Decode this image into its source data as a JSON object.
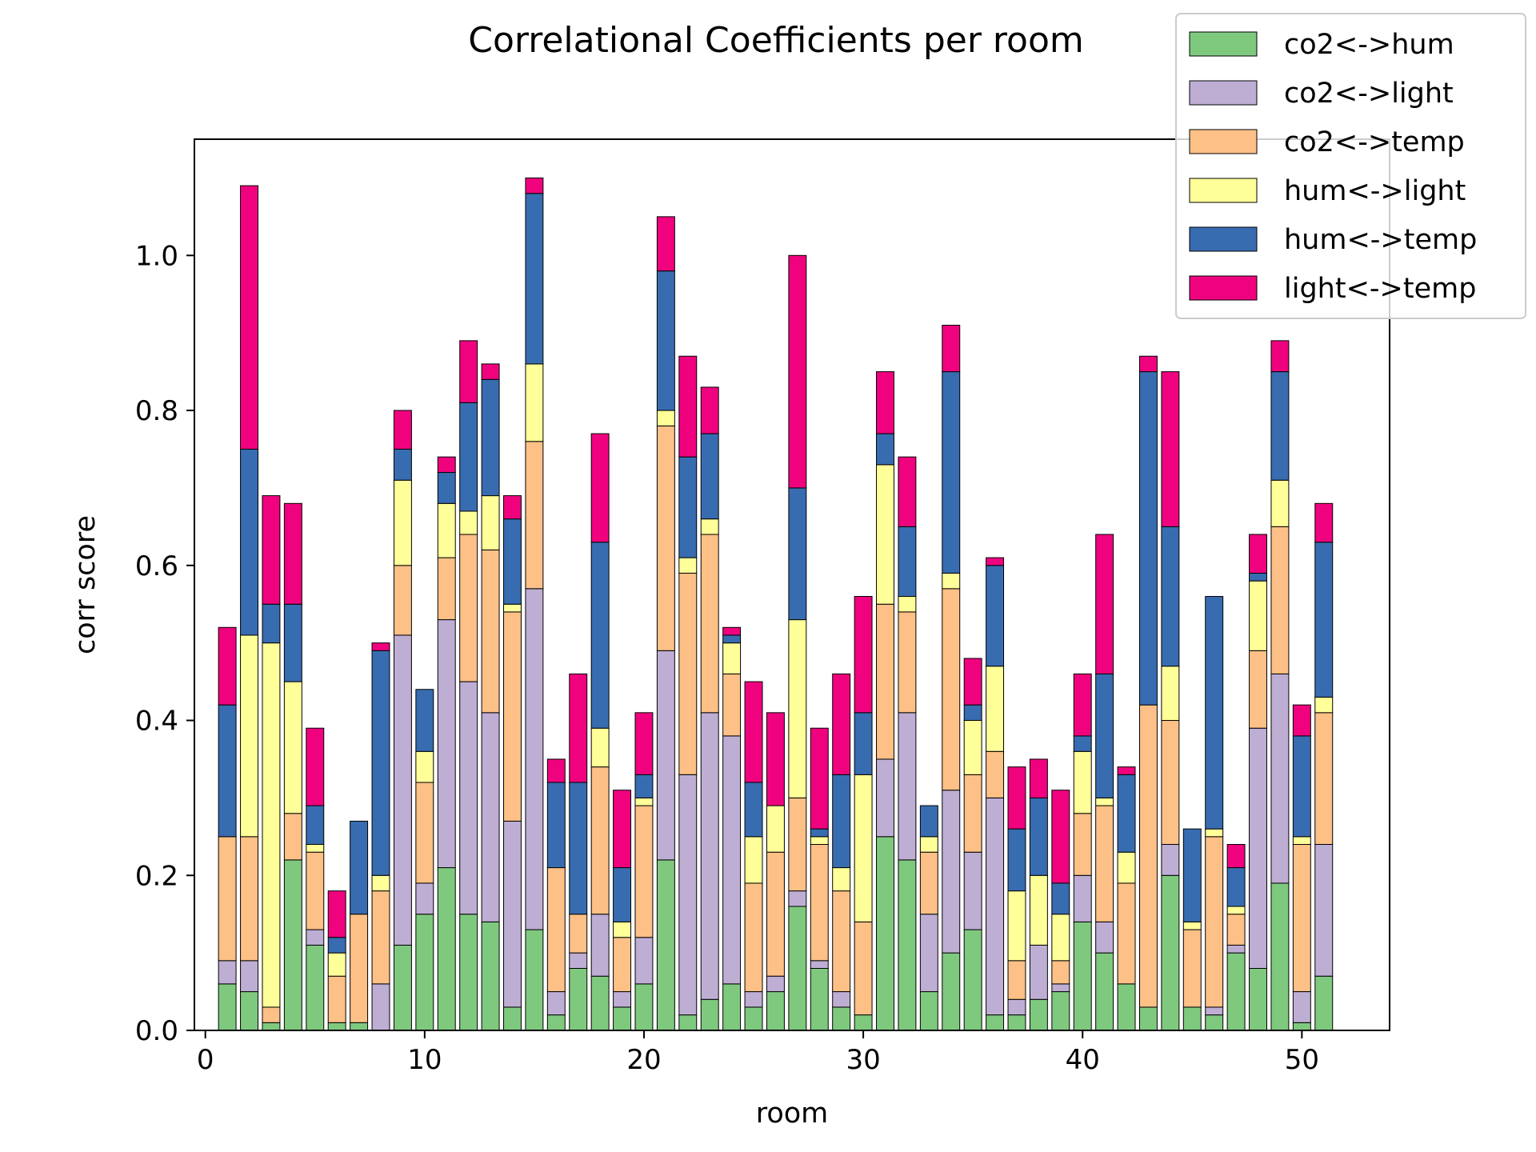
{
  "chart_data": {
    "type": "bar",
    "stacked": true,
    "title": "Correlational Coefficients per room",
    "xlabel": "room",
    "ylabel": "corr score",
    "xlim": [
      -0.5,
      54
    ],
    "ylim": [
      0,
      1.15
    ],
    "xticks": [
      0,
      10,
      20,
      30,
      40,
      50
    ],
    "yticks": [
      0.0,
      0.2,
      0.4,
      0.6,
      0.8,
      1.0
    ],
    "xtick_labels": [
      "0",
      "10",
      "20",
      "30",
      "40",
      "50"
    ],
    "ytick_labels": [
      "0.0",
      "0.2",
      "0.4",
      "0.6",
      "0.8",
      "1.0"
    ],
    "grid": false,
    "legend_position": "top-right",
    "x": [
      1,
      2,
      3,
      4,
      5,
      6,
      7,
      8,
      9,
      10,
      11,
      12,
      13,
      14,
      15,
      16,
      17,
      18,
      19,
      20,
      21,
      22,
      23,
      24,
      25,
      26,
      27,
      28,
      29,
      30,
      31,
      32,
      33,
      34,
      35,
      36,
      37,
      38,
      39,
      40,
      41,
      42,
      43,
      44,
      45,
      46,
      47,
      48,
      49,
      50,
      51
    ],
    "series": [
      {
        "name": "co2<->hum",
        "color": "#7fc97f",
        "values": [
          0.06,
          0.05,
          0.01,
          0.22,
          0.11,
          0.01,
          0.01,
          0.0,
          0.11,
          0.15,
          0.21,
          0.15,
          0.14,
          0.03,
          0.13,
          0.02,
          0.08,
          0.07,
          0.03,
          0.06,
          0.22,
          0.02,
          0.04,
          0.06,
          0.03,
          0.05,
          0.16,
          0.08,
          0.03,
          0.02,
          0.25,
          0.22,
          0.05,
          0.1,
          0.13,
          0.02,
          0.02,
          0.04,
          0.05,
          0.14,
          0.1,
          0.06,
          0.03,
          0.2,
          0.03,
          0.02,
          0.1,
          0.08,
          0.19,
          0.01,
          0.07
        ]
      },
      {
        "name": "co2<->light",
        "color": "#beaed4",
        "values": [
          0.03,
          0.04,
          0.0,
          0.0,
          0.02,
          0.0,
          0.0,
          0.06,
          0.4,
          0.04,
          0.32,
          0.3,
          0.27,
          0.24,
          0.44,
          0.03,
          0.02,
          0.08,
          0.02,
          0.06,
          0.27,
          0.31,
          0.37,
          0.32,
          0.02,
          0.02,
          0.02,
          0.01,
          0.02,
          0.0,
          0.1,
          0.19,
          0.1,
          0.21,
          0.1,
          0.28,
          0.02,
          0.07,
          0.01,
          0.06,
          0.04,
          0.0,
          0.0,
          0.04,
          0.0,
          0.01,
          0.01,
          0.31,
          0.27,
          0.04,
          0.17
        ]
      },
      {
        "name": "co2<->temp",
        "color": "#fdc086",
        "values": [
          0.16,
          0.16,
          0.02,
          0.06,
          0.1,
          0.06,
          0.14,
          0.12,
          0.09,
          0.13,
          0.08,
          0.19,
          0.21,
          0.27,
          0.19,
          0.16,
          0.05,
          0.19,
          0.07,
          0.17,
          0.29,
          0.26,
          0.23,
          0.08,
          0.14,
          0.16,
          0.12,
          0.15,
          0.13,
          0.12,
          0.2,
          0.13,
          0.08,
          0.26,
          0.1,
          0.06,
          0.05,
          0.0,
          0.03,
          0.08,
          0.15,
          0.13,
          0.39,
          0.16,
          0.1,
          0.22,
          0.04,
          0.1,
          0.19,
          0.19,
          0.17
        ]
      },
      {
        "name": "hum<->light",
        "color": "#ffff99",
        "values": [
          0.0,
          0.26,
          0.47,
          0.17,
          0.01,
          0.03,
          0.0,
          0.02,
          0.11,
          0.04,
          0.07,
          0.03,
          0.07,
          0.01,
          0.1,
          0.0,
          0.0,
          0.05,
          0.02,
          0.01,
          0.02,
          0.02,
          0.02,
          0.04,
          0.06,
          0.06,
          0.23,
          0.01,
          0.03,
          0.19,
          0.18,
          0.02,
          0.02,
          0.02,
          0.07,
          0.11,
          0.09,
          0.09,
          0.06,
          0.08,
          0.01,
          0.04,
          0.0,
          0.07,
          0.01,
          0.01,
          0.01,
          0.09,
          0.06,
          0.01,
          0.02
        ]
      },
      {
        "name": "hum<->temp",
        "color": "#386cb0",
        "values": [
          0.17,
          0.24,
          0.05,
          0.1,
          0.05,
          0.02,
          0.12,
          0.29,
          0.04,
          0.08,
          0.04,
          0.14,
          0.15,
          0.11,
          0.22,
          0.11,
          0.17,
          0.24,
          0.07,
          0.03,
          0.18,
          0.13,
          0.11,
          0.01,
          0.07,
          0.0,
          0.17,
          0.01,
          0.12,
          0.08,
          0.04,
          0.09,
          0.04,
          0.26,
          0.02,
          0.13,
          0.08,
          0.1,
          0.04,
          0.02,
          0.16,
          0.1,
          0.43,
          0.18,
          0.12,
          0.3,
          0.05,
          0.01,
          0.14,
          0.13,
          0.2
        ]
      },
      {
        "name": "light<->temp",
        "color": "#f0027f",
        "values": [
          0.1,
          0.34,
          0.14,
          0.13,
          0.1,
          0.06,
          0.0,
          0.01,
          0.05,
          0.0,
          0.02,
          0.08,
          0.02,
          0.03,
          0.02,
          0.03,
          0.14,
          0.14,
          0.1,
          0.08,
          0.07,
          0.13,
          0.06,
          0.01,
          0.13,
          0.12,
          0.3,
          0.13,
          0.13,
          0.15,
          0.08,
          0.09,
          0.0,
          0.06,
          0.06,
          0.01,
          0.08,
          0.05,
          0.12,
          0.08,
          0.18,
          0.01,
          0.02,
          0.2,
          0.0,
          0.0,
          0.03,
          0.05,
          0.04,
          0.04,
          0.05
        ]
      }
    ]
  }
}
